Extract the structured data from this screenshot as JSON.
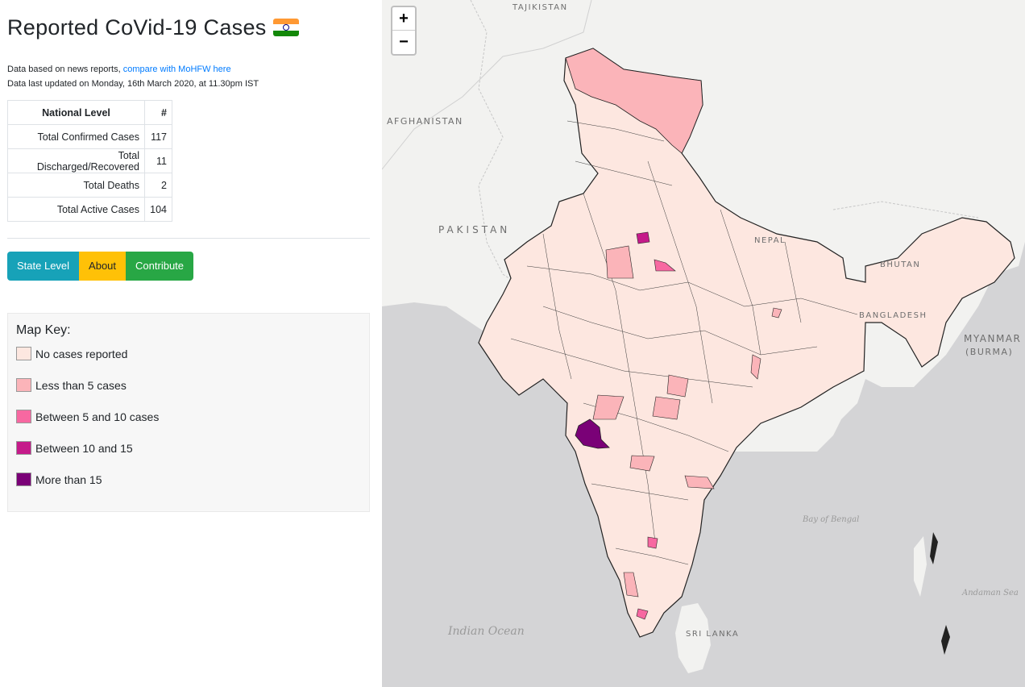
{
  "header": {
    "title": "Reported CoVid-19 Cases",
    "source_prefix": "Data based on news reports, ",
    "source_link": "compare with MoHFW here",
    "updated": "Data last updated on Monday, 16th March 2020, at 11.30pm IST"
  },
  "table": {
    "headers": [
      "National Level",
      "#"
    ],
    "rows": [
      {
        "label": "Total Confirmed Cases",
        "value": "117"
      },
      {
        "label": "Total Discharged/Recovered",
        "value": "11"
      },
      {
        "label": "Total Deaths",
        "value": "2"
      },
      {
        "label": "Total Active Cases",
        "value": "104"
      }
    ]
  },
  "buttons": {
    "state": "State Level",
    "about": "About",
    "contribute": "Contribute"
  },
  "key": {
    "title": "Map Key:",
    "items": [
      {
        "label": "No cases reported",
        "color": "#fde7e0"
      },
      {
        "label": "Less than 5 cases",
        "color": "#fbb4b9"
      },
      {
        "label": "Between 5 and 10 cases",
        "color": "#f768a1"
      },
      {
        "label": "Between 10 and 15",
        "color": "#c51b8a"
      },
      {
        "label": "More than 15",
        "color": "#7a0177"
      }
    ]
  },
  "map": {
    "zoom_in": "+",
    "zoom_out": "−",
    "labels": {
      "tajikistan": "TAJIKISTAN",
      "afghanistan": "AFGHANISTAN",
      "pakistan": "PAKISTAN",
      "nepal": "NEPAL",
      "bhutan": "BHUTAN",
      "bangladesh": "BANGLADESH",
      "myanmar": "MYANMAR",
      "burma": "(BURMA)",
      "sri_lanka": "SRI LANKA",
      "bay_of_bengal": "Bay of Bengal",
      "indian_ocean": "Indian Ocean",
      "andaman_sea": "Andaman Sea"
    }
  }
}
